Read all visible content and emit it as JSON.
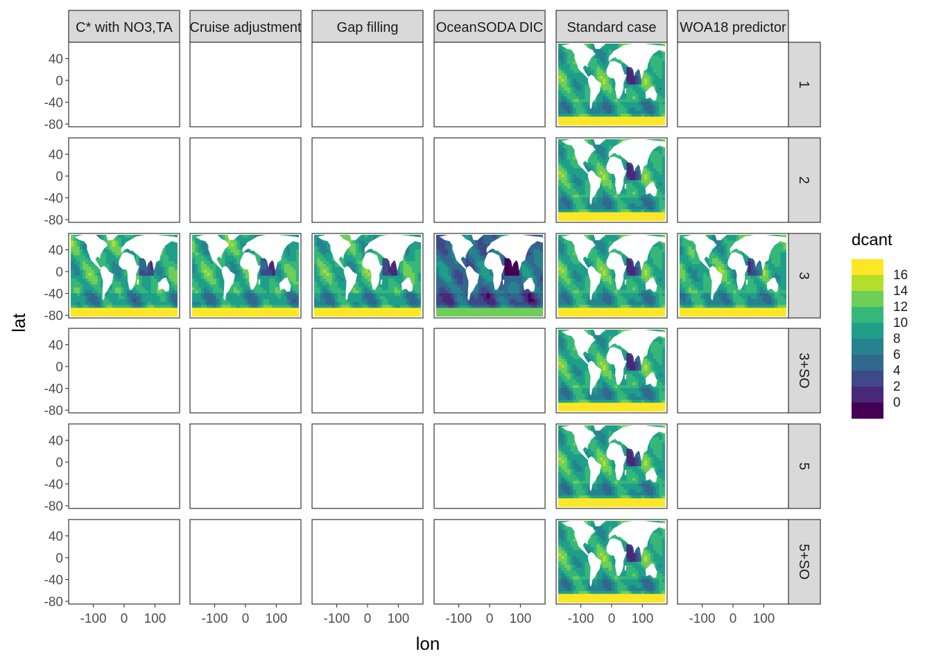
{
  "chart_data": {
    "type": "heatmap",
    "title": "",
    "xlabel": "lon",
    "ylabel": "lat",
    "x_ticks": [
      -100,
      0,
      100
    ],
    "x_tick_labels": [
      "-100",
      "0",
      "100"
    ],
    "y_ticks": [
      40,
      0,
      -40,
      -80
    ],
    "y_tick_labels": [
      "40",
      "0",
      "-40",
      "-80"
    ],
    "xlim": [
      -180,
      180
    ],
    "ylim": [
      -85,
      70
    ],
    "col_facets": [
      "C* with NO3,TA",
      "Cruise adjustment",
      "Gap filling",
      "OceanSODA DIC",
      "Standard case",
      "WOA18 predictor"
    ],
    "row_facets": [
      "1",
      "2",
      "3",
      "3+SO",
      "5",
      "5+SO"
    ],
    "filled_panels": [
      {
        "row": "1",
        "col": "Standard case"
      },
      {
        "row": "2",
        "col": "Standard case"
      },
      {
        "row": "3",
        "col": "C* with NO3,TA"
      },
      {
        "row": "3",
        "col": "Cruise adjustment"
      },
      {
        "row": "3",
        "col": "Gap filling"
      },
      {
        "row": "3",
        "col": "OceanSODA DIC"
      },
      {
        "row": "3",
        "col": "Standard case"
      },
      {
        "row": "3",
        "col": "WOA18 predictor"
      },
      {
        "row": "3+SO",
        "col": "Standard case"
      },
      {
        "row": "5",
        "col": "Standard case"
      },
      {
        "row": "5+SO",
        "col": "Standard case"
      }
    ],
    "legend": {
      "title": "dcant",
      "placement": "right",
      "labels": [
        "16",
        "14",
        "12",
        "10",
        "8",
        "6",
        "4",
        "2",
        "0"
      ],
      "bins": [
        {
          "color": "#fde725"
        },
        {
          "color": "#b4de2c"
        },
        {
          "color": "#6ece58"
        },
        {
          "color": "#35b779"
        },
        {
          "color": "#1f9e89"
        },
        {
          "color": "#26828e"
        },
        {
          "color": "#31688e"
        },
        {
          "color": "#3e4989"
        },
        {
          "color": "#482878"
        },
        {
          "color": "#440154"
        }
      ]
    },
    "colors": {
      "strip_fill": "#d9d9d9",
      "panel_border": "#333333",
      "tick_text": "#4d4d4d",
      "land": "#ffffff"
    }
  }
}
